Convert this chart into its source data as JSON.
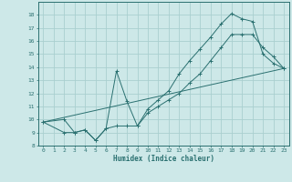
{
  "bg_color": "#cde8e8",
  "grid_color": "#aacfcf",
  "line_color": "#2a7070",
  "xlabel": "Humidex (Indice chaleur)",
  "xlim": [
    -0.5,
    23.5
  ],
  "ylim": [
    8,
    19
  ],
  "xticks": [
    0,
    1,
    2,
    3,
    4,
    5,
    6,
    7,
    8,
    9,
    10,
    11,
    12,
    13,
    14,
    15,
    16,
    17,
    18,
    19,
    20,
    21,
    22,
    23
  ],
  "yticks": [
    8,
    9,
    10,
    11,
    12,
    13,
    14,
    15,
    16,
    17,
    18
  ],
  "line1_x": [
    0,
    2,
    3,
    4,
    5,
    6,
    7,
    8,
    9,
    10,
    11,
    12,
    13,
    14,
    15,
    16,
    17,
    18,
    19,
    20,
    21,
    22,
    23
  ],
  "line1_y": [
    9.8,
    10.0,
    9.0,
    9.2,
    8.4,
    9.3,
    13.7,
    11.4,
    9.5,
    10.8,
    11.5,
    12.2,
    13.5,
    14.5,
    15.4,
    16.3,
    17.3,
    18.1,
    17.7,
    17.5,
    15.0,
    14.3,
    13.9
  ],
  "line2_x": [
    0,
    2,
    3,
    4,
    5,
    6,
    7,
    8,
    9,
    10,
    11,
    12,
    13,
    14,
    15,
    16,
    17,
    18,
    19,
    20,
    21,
    22,
    23
  ],
  "line2_y": [
    9.8,
    9.0,
    9.0,
    9.2,
    8.4,
    9.3,
    9.5,
    9.5,
    9.5,
    10.5,
    11.0,
    11.5,
    12.0,
    12.8,
    13.5,
    14.5,
    15.5,
    16.5,
    16.5,
    16.5,
    15.5,
    14.8,
    13.9
  ],
  "line3_x": [
    0,
    23
  ],
  "line3_y": [
    9.8,
    13.9
  ],
  "marker": "+"
}
